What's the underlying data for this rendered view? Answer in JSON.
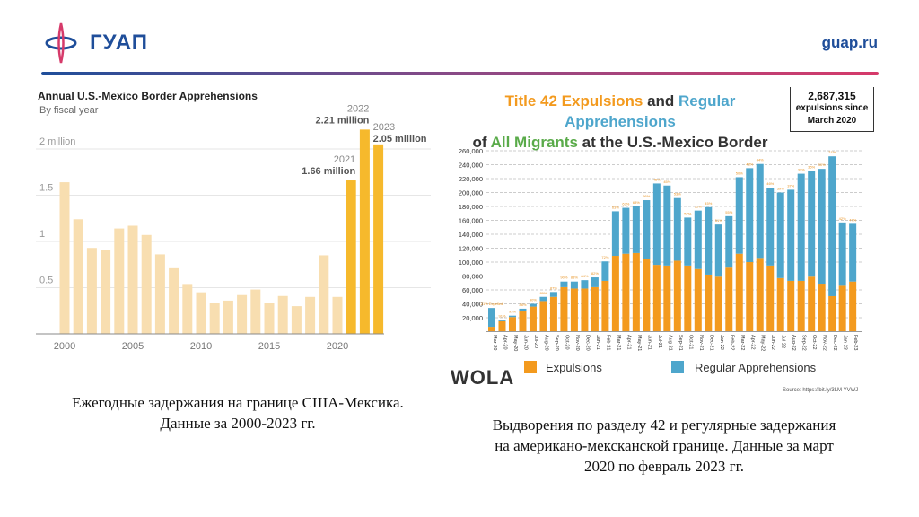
{
  "header": {
    "logo_text": "ГУАП",
    "site": "guap.ru",
    "brand_colors": [
      "#1f4e9a",
      "#d63a6a"
    ]
  },
  "captions": {
    "left": [
      "Ежегодные задержания на границе США-Мексика.",
      "Данные за 2000-2023 гг."
    ],
    "right": [
      "Выдворения по разделу 42 и регулярные задержания",
      "на американо-мексканской границе. Данные за март",
      "2020 по февраль 2023 гг."
    ]
  },
  "right_extras": {
    "box_lines": [
      "2,687,315",
      "expulsions since",
      "March 2020"
    ],
    "wola": "WOLA",
    "source": "Source: https://bit.ly/3LM YVWJ"
  },
  "chart_data": [
    {
      "type": "bar",
      "title": "Annual U.S.-Mexico Border Apprehensions",
      "subtitle": "By fiscal year",
      "ylabel": "",
      "ylim": [
        0,
        2.3
      ],
      "yticks": [
        {
          "v": 0.5,
          "label": "0.5"
        },
        {
          "v": 1,
          "label": "1"
        },
        {
          "v": 1.5,
          "label": "1.5"
        },
        {
          "v": 2,
          "label": "2 million"
        }
      ],
      "xticks": [
        "2000",
        "2005",
        "2010",
        "2015",
        "2020"
      ],
      "grid": true,
      "categories": [
        2000,
        2001,
        2002,
        2003,
        2004,
        2005,
        2006,
        2007,
        2008,
        2009,
        2010,
        2011,
        2012,
        2013,
        2014,
        2015,
        2016,
        2017,
        2018,
        2019,
        2020,
        2021,
        2022,
        2023
      ],
      "values": [
        1.64,
        1.24,
        0.93,
        0.91,
        1.14,
        1.17,
        1.07,
        0.86,
        0.71,
        0.54,
        0.45,
        0.33,
        0.36,
        0.42,
        0.48,
        0.33,
        0.41,
        0.3,
        0.4,
        0.85,
        0.4,
        1.66,
        2.21,
        2.05
      ],
      "colors": {
        "normal": "#f8deb0",
        "highlight": "#f6b92c"
      },
      "highlight_years": [
        2021,
        2022,
        2023
      ],
      "annotations": [
        {
          "year": "2021",
          "value_label": "1.66 million"
        },
        {
          "year": "2022",
          "value_label": "2.21 million"
        },
        {
          "year": "2023",
          "value_label": "2.05 million"
        }
      ]
    },
    {
      "type": "bar",
      "stacked": true,
      "title_parts": [
        {
          "text": "Title 42 Expulsions",
          "color": "#f39a1e"
        },
        {
          "text": " and ",
          "color": "#333333"
        },
        {
          "text": "Regular Apprehensions",
          "color": "#4ea6cc"
        },
        {
          "text": "of ",
          "color": "#333333"
        },
        {
          "text": "All Migrants",
          "color": "#5aab4a"
        },
        {
          "text": " at the U.S.-Mexico Border",
          "color": "#333333"
        }
      ],
      "ylim": [
        0,
        260000
      ],
      "yticks": [
        "20,000",
        "40,000",
        "60,000",
        "80,000",
        "100,000",
        "120,000",
        "140,000",
        "160,000",
        "180,000",
        "200,000",
        "220,000",
        "240,000",
        "260,000"
      ],
      "grid": true,
      "legend_position": "bottom",
      "categories": [
        "Mar-20",
        "Apr-20",
        "May-20",
        "Jun-20",
        "Jul-20",
        "Aug-20",
        "Sep-20",
        "Oct-20",
        "Nov-20",
        "Dec-20",
        "Jan-21",
        "Feb-21",
        "Mar-21",
        "Apr-21",
        "May-21",
        "Jun-21",
        "Jul-21",
        "Aug-21",
        "Sep-21",
        "Oct-21",
        "Nov-21",
        "Dec-21",
        "Jan-22",
        "Feb-22",
        "Mar-22",
        "Apr-22",
        "May-22",
        "Jun-22",
        "Jul-22",
        "Aug-22",
        "Sep-22",
        "Oct-22",
        "Nov-22",
        "Dec-22",
        "Jan-23",
        "Feb-23"
      ],
      "series": [
        {
          "name": "Expulsions",
          "color": "#f39a1e",
          "values": [
            7000,
            15000,
            21000,
            29000,
            36000,
            44000,
            50000,
            64000,
            62000,
            62000,
            64000,
            73000,
            109000,
            112000,
            113000,
            105000,
            96000,
            95000,
            102000,
            95000,
            90000,
            82000,
            79000,
            92000,
            112000,
            100000,
            106000,
            95000,
            77000,
            73000,
            73000,
            79000,
            69000,
            51000,
            66000,
            72000
          ]
        },
        {
          "name": "Regular Apprehensions",
          "color": "#4ea6cc",
          "values": [
            27000,
            2000,
            2000,
            4000,
            4000,
            6000,
            7000,
            8000,
            10000,
            12000,
            14000,
            28000,
            64000,
            66000,
            67000,
            84000,
            117000,
            115000,
            90000,
            69000,
            84000,
            97000,
            75000,
            74000,
            110000,
            135000,
            135000,
            112000,
            123000,
            131000,
            154000,
            152000,
            165000,
            201000,
            91000,
            83000
          ]
        }
      ],
      "pct_labels": [
        "21% Expelled",
        "91%",
        "93%",
        "88%",
        "90%",
        "89%",
        "87%",
        "90%",
        "88%",
        "84%",
        "82%",
        "72%",
        "63%",
        "63%",
        "63%",
        "56%",
        "45%",
        "45%",
        "53%",
        "57%",
        "52%",
        "45%",
        "51%",
        "55%",
        "50%",
        "43%",
        "44%",
        "46%",
        "39%",
        "37%",
        "32%",
        "35%",
        "30%",
        "21%",
        "42%",
        "47%"
      ]
    }
  ]
}
